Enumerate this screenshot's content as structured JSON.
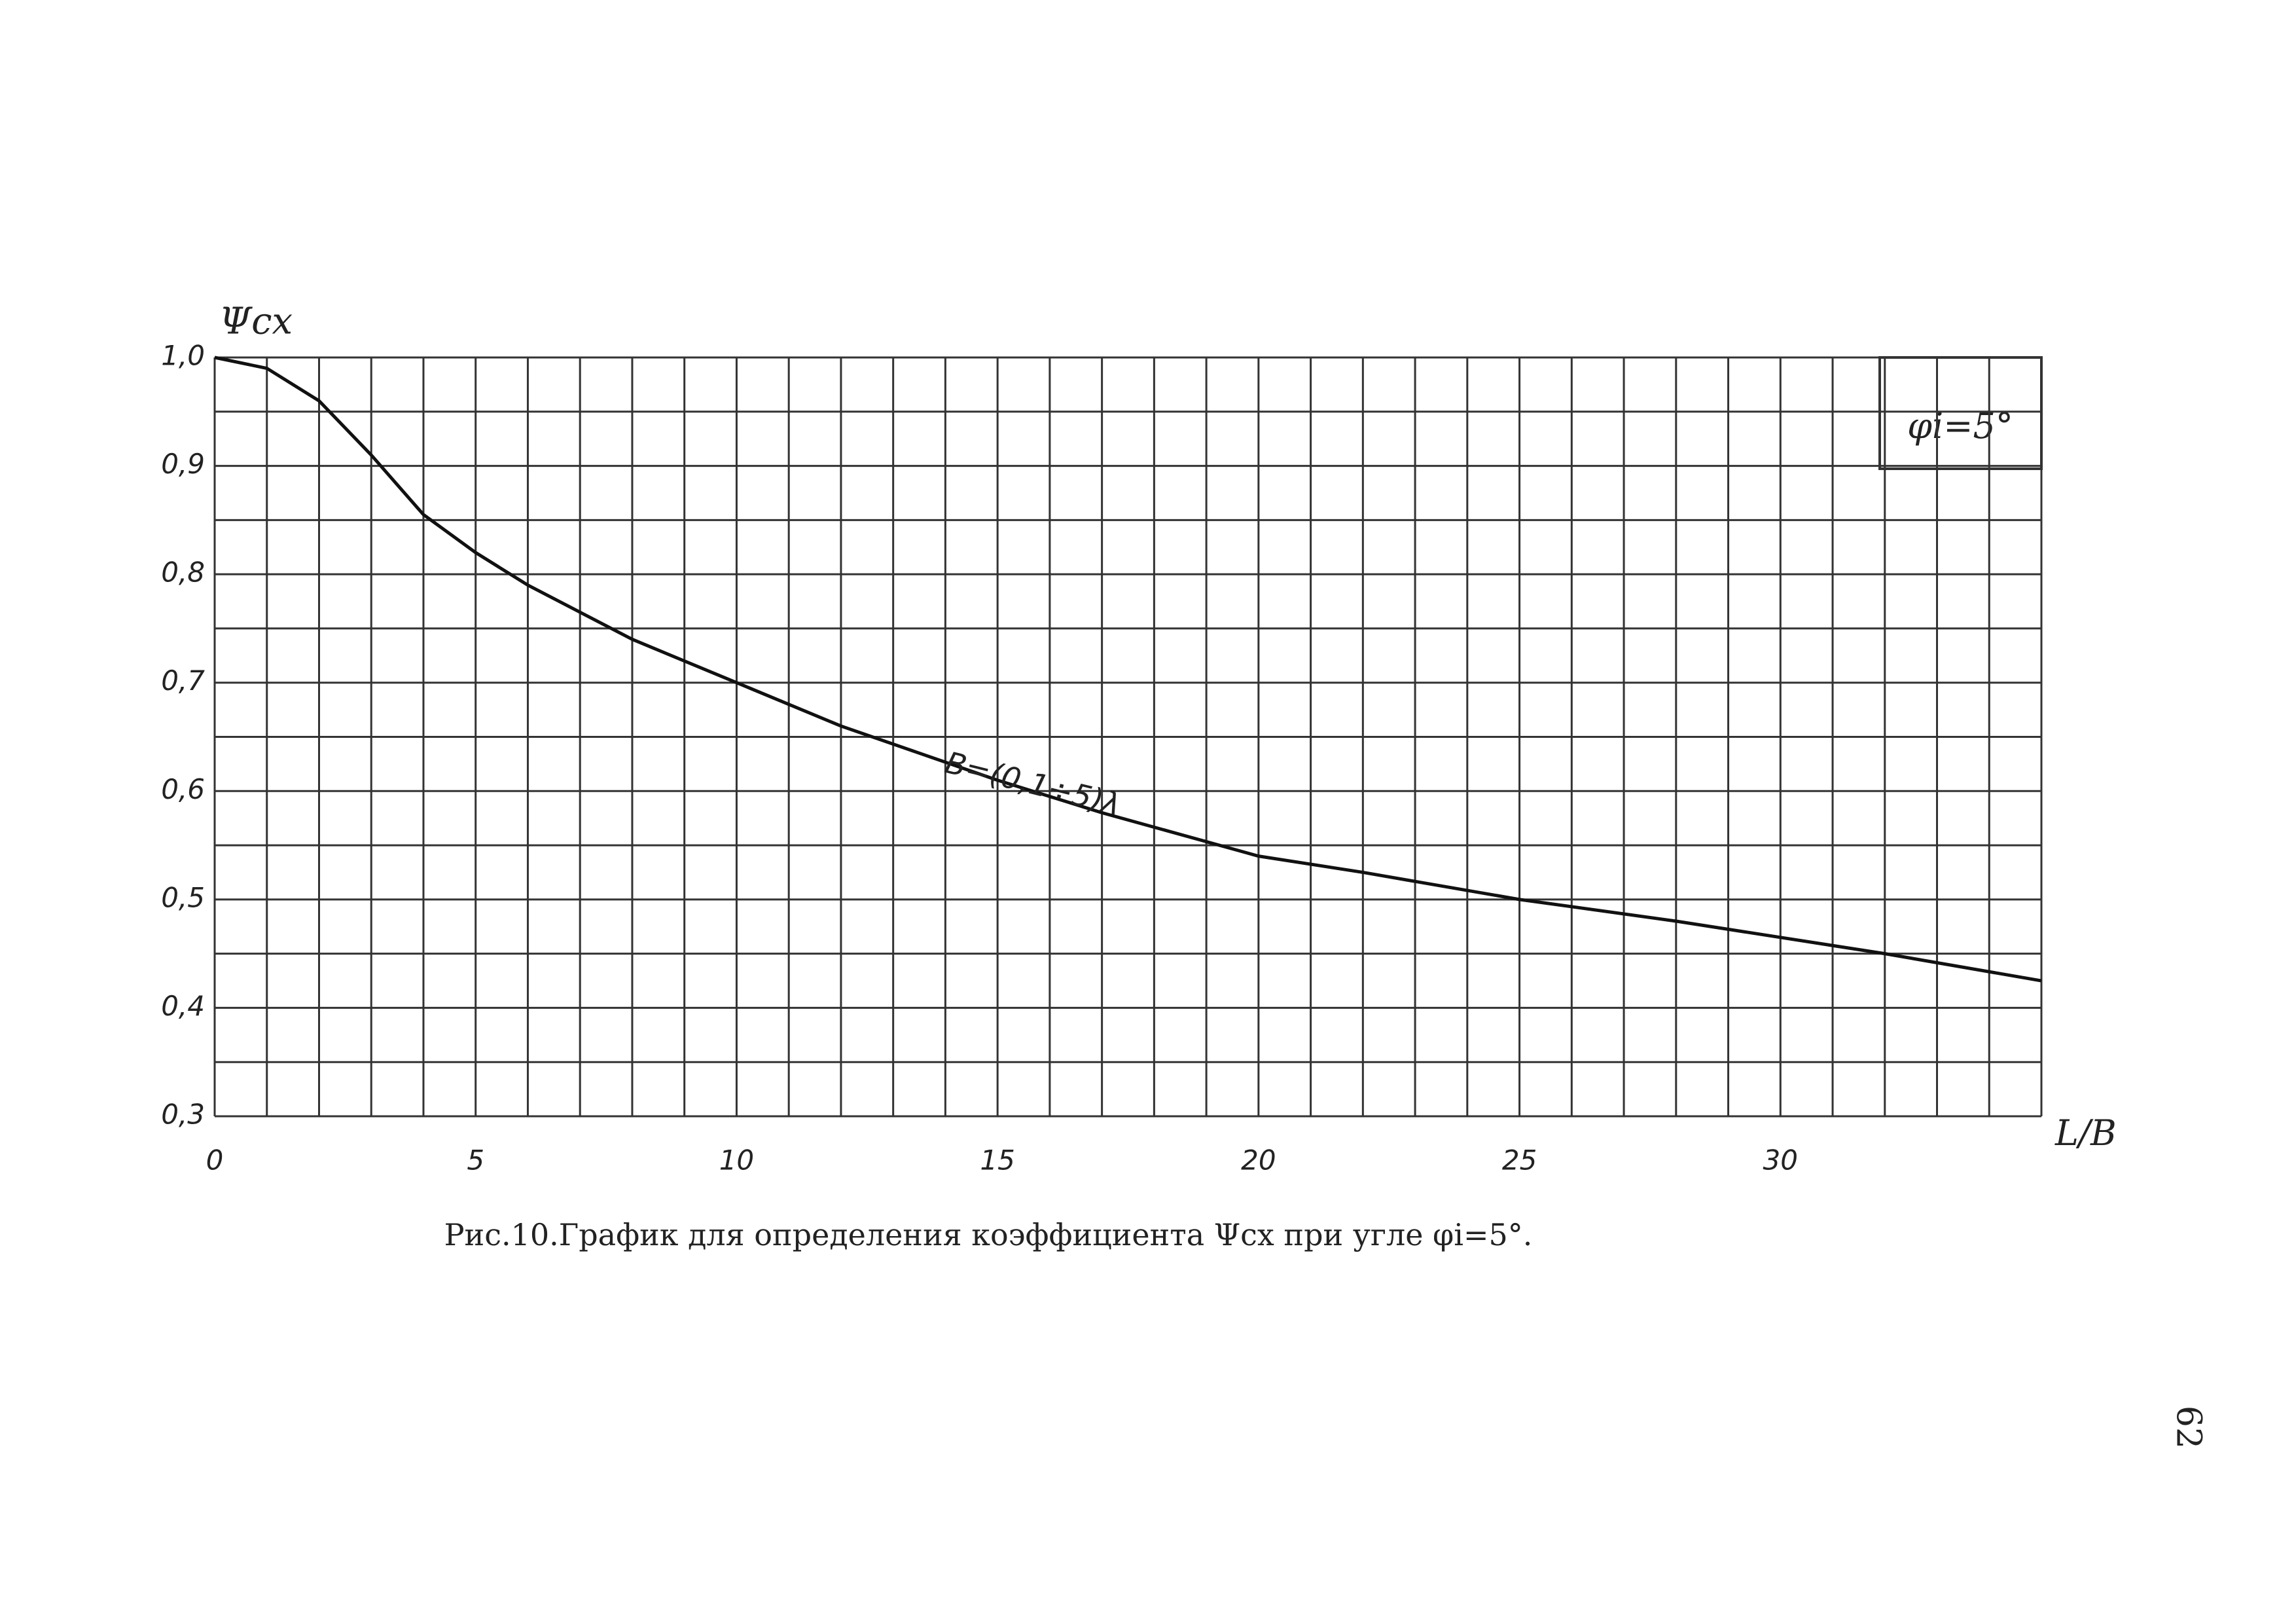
{
  "chart_data": {
    "type": "line",
    "y_label": "Ψсх",
    "x_label": "L/B",
    "annotation": "φi=5°",
    "curve_label": "B=(0,1÷5)λ",
    "caption": "Рис.10.График для определения коэффициента Ψсх при угле φi=5°.",
    "page_number": "62",
    "x": [
      0,
      1,
      2,
      3,
      4,
      5,
      6,
      8,
      10,
      12,
      15,
      17,
      20,
      22,
      25,
      28,
      30,
      32,
      35
    ],
    "series": [
      {
        "name": "B=(0,1÷5)λ",
        "color": "#111111",
        "values": [
          1.0,
          0.99,
          0.96,
          0.91,
          0.855,
          0.82,
          0.79,
          0.74,
          0.7,
          0.66,
          0.61,
          0.58,
          0.54,
          0.525,
          0.5,
          0.48,
          0.465,
          0.45,
          0.425
        ]
      }
    ],
    "xlim": [
      0,
      35
    ],
    "xticks": [
      0,
      5,
      10,
      15,
      20,
      25,
      30
    ],
    "xgrid": [
      0,
      1,
      2,
      3,
      4,
      5,
      6,
      7,
      8,
      9,
      10,
      11,
      12,
      13,
      14,
      15,
      16,
      17,
      18,
      19,
      20,
      21,
      22,
      23,
      24,
      25,
      26,
      27,
      28,
      29,
      30,
      31,
      32,
      33,
      34,
      35
    ],
    "ylim": [
      0.3,
      1.0
    ],
    "yticks": [
      {
        "value": 0.3,
        "label": "0,3"
      },
      {
        "value": 0.4,
        "label": "0,4"
      },
      {
        "value": 0.5,
        "label": "0,5"
      },
      {
        "value": 0.6,
        "label": "0,6"
      },
      {
        "value": 0.7,
        "label": "0,7"
      },
      {
        "value": 0.8,
        "label": "0,8"
      },
      {
        "value": 0.9,
        "label": "0,9"
      },
      {
        "value": 1.0,
        "label": "1,0"
      }
    ],
    "ygrid": [
      0.3,
      0.35,
      0.4,
      0.45,
      0.5,
      0.55,
      0.6,
      0.65,
      0.7,
      0.75,
      0.8,
      0.85,
      0.9,
      0.95,
      1.0
    ],
    "grid": true
  }
}
